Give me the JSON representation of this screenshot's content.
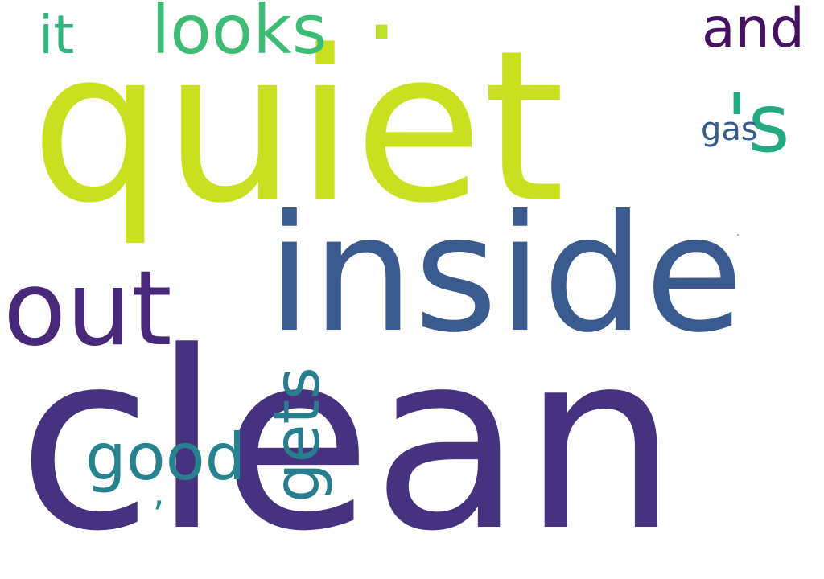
{
  "words": [
    {
      "text": "clean",
      "color": "#46327e"
    },
    {
      "text": "quiet",
      "color": "#c8e020"
    },
    {
      "text": "inside",
      "color": "#3b5a8d"
    },
    {
      "text": "out",
      "color": "#482878"
    },
    {
      "text": "looks",
      "color": "#3dbc74"
    },
    {
      "text": "it",
      "color": "#2fb47c"
    },
    {
      "text": "and",
      "color": "#471163"
    },
    {
      "text": "'s",
      "color": "#24aa83"
    },
    {
      "text": "gas",
      "color": "#365c8d"
    },
    {
      "text": "good",
      "color": "#26828e"
    },
    {
      "text": "gets",
      "color": "#287d8e"
    },
    {
      "text": ".",
      "color": "#bddf26"
    },
    {
      "text": ",",
      "color": "#21908d"
    },
    {
      "text": ".",
      "color": "#3b528b"
    }
  ]
}
